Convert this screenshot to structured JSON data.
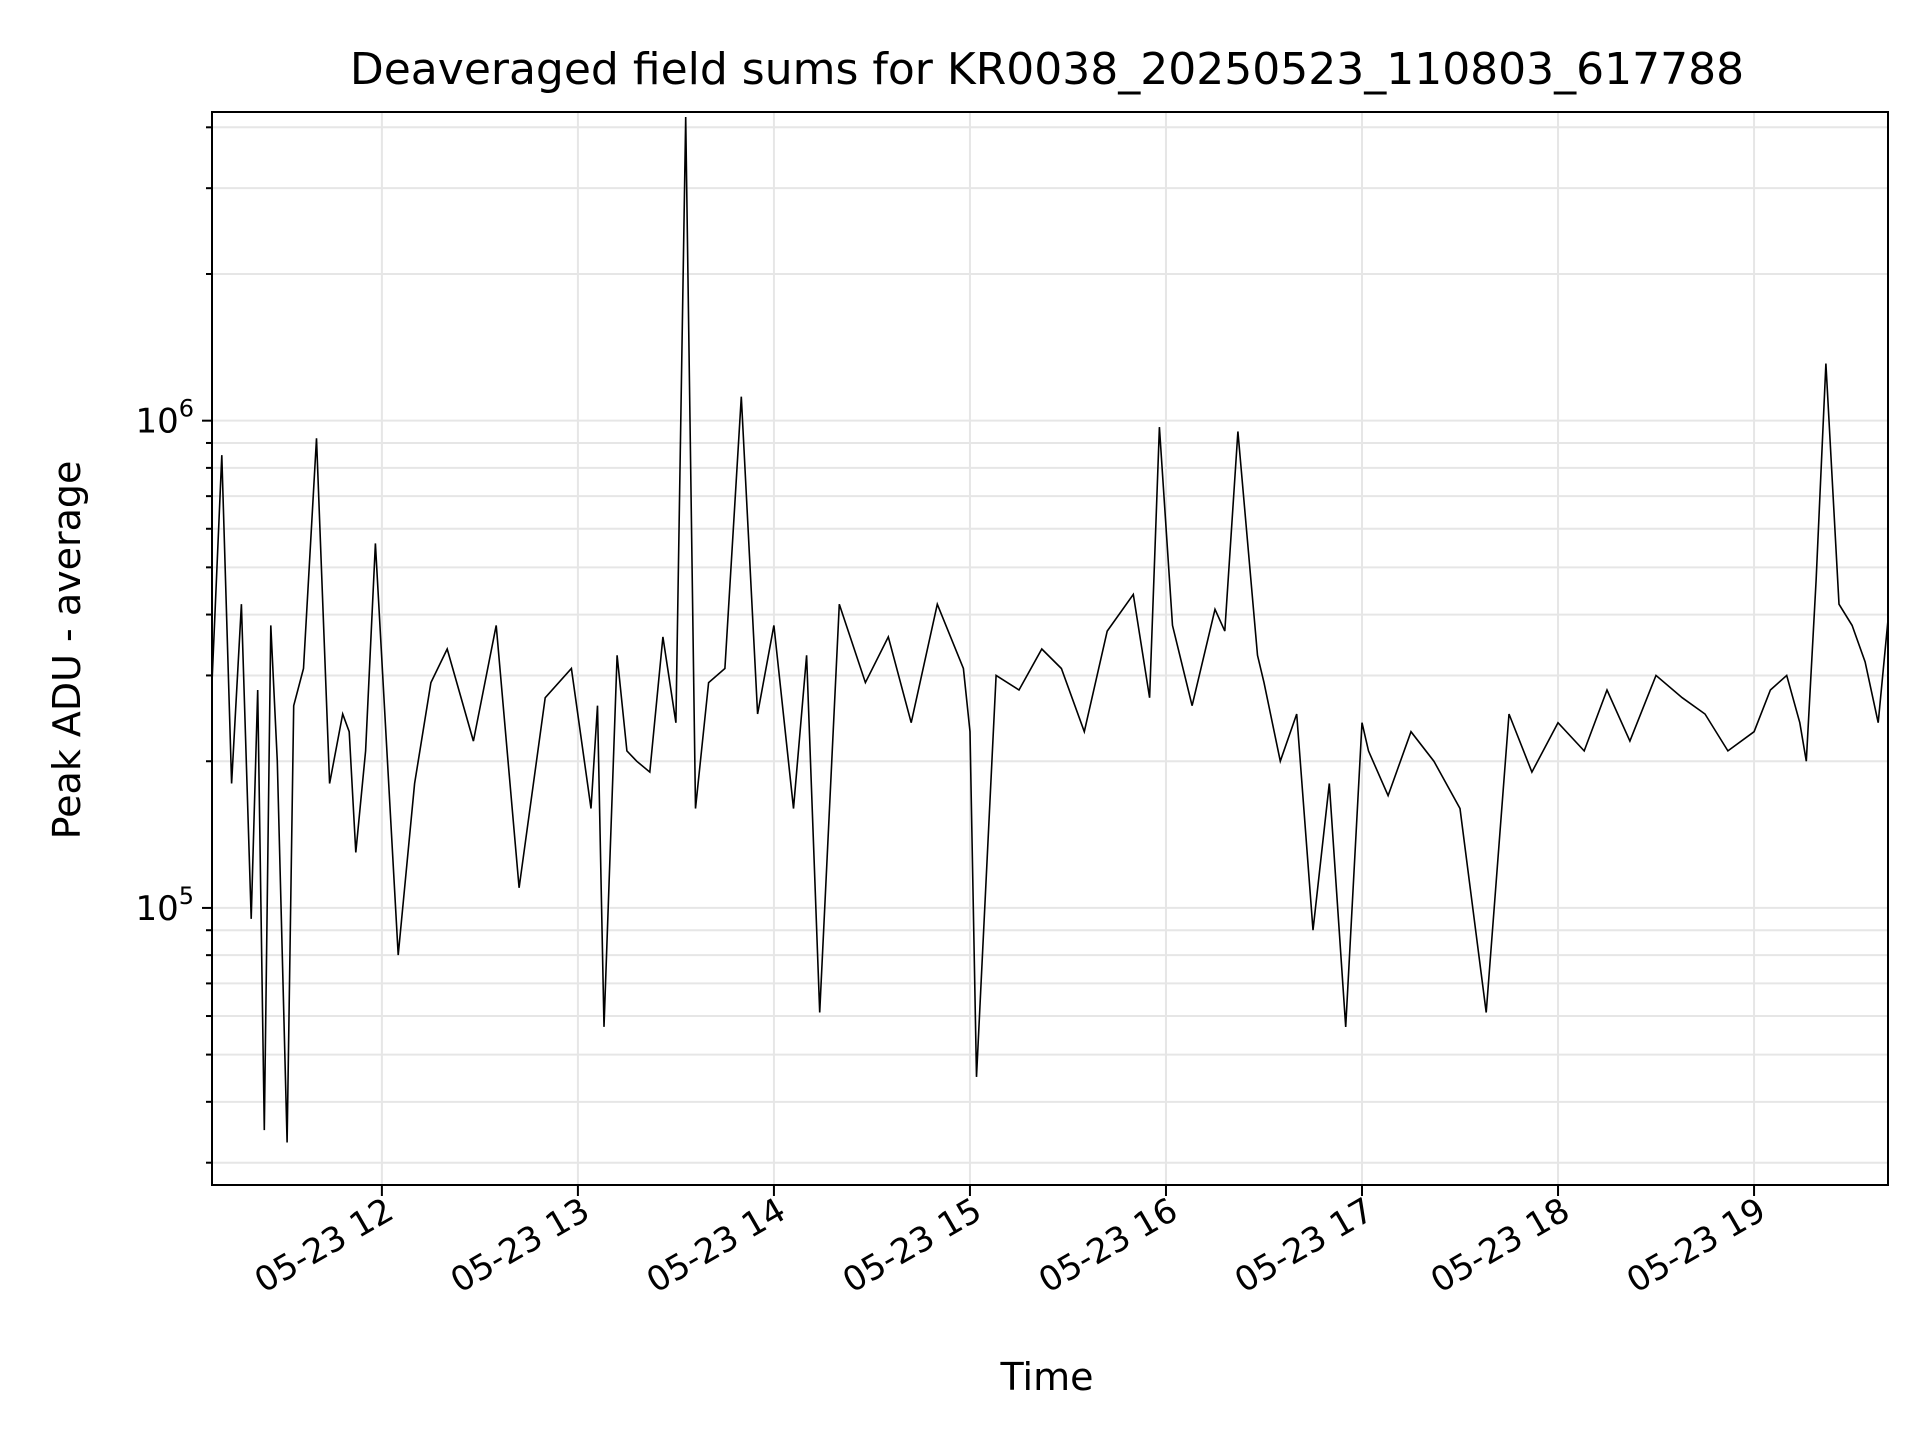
{
  "chart_data": {
    "type": "line",
    "title": "Deaveraged field sums for KR0038_20250523_110803_617788",
    "xlabel": "Time",
    "ylabel": "Peak ADU - average",
    "x_scale": "time",
    "y_scale": "log",
    "xlim": [
      "2025-05-23 11:08",
      "2025-05-23 19:41"
    ],
    "ylim": [
      27000,
      4300000
    ],
    "grid": true,
    "line_color": "#000000",
    "grid_color": "#e6e6e6",
    "x_ticks": [
      {
        "value": "2025-05-23 12:00",
        "label": "05-23 12"
      },
      {
        "value": "2025-05-23 13:00",
        "label": "05-23 13"
      },
      {
        "value": "2025-05-23 14:00",
        "label": "05-23 14"
      },
      {
        "value": "2025-05-23 15:00",
        "label": "05-23 15"
      },
      {
        "value": "2025-05-23 16:00",
        "label": "05-23 16"
      },
      {
        "value": "2025-05-23 17:00",
        "label": "05-23 17"
      },
      {
        "value": "2025-05-23 18:00",
        "label": "05-23 18"
      },
      {
        "value": "2025-05-23 19:00",
        "label": "05-23 19"
      }
    ],
    "y_ticks": [
      {
        "value": 100000,
        "base": "10",
        "exp": "5"
      },
      {
        "value": 1000000,
        "base": "10",
        "exp": "6"
      }
    ],
    "series": [
      {
        "x": [
          "2025-05-23 11:08",
          "2025-05-23 11:11",
          "2025-05-23 11:14",
          "2025-05-23 11:17",
          "2025-05-23 11:20",
          "2025-05-23 11:22",
          "2025-05-23 11:24",
          "2025-05-23 11:26",
          "2025-05-23 11:28",
          "2025-05-23 11:31",
          "2025-05-23 11:33",
          "2025-05-23 11:36",
          "2025-05-23 11:40",
          "2025-05-23 11:44",
          "2025-05-23 11:48",
          "2025-05-23 11:50",
          "2025-05-23 11:52",
          "2025-05-23 11:55",
          "2025-05-23 11:58",
          "2025-05-23 12:05",
          "2025-05-23 12:10",
          "2025-05-23 12:15",
          "2025-05-23 12:20",
          "2025-05-23 12:28",
          "2025-05-23 12:35",
          "2025-05-23 12:42",
          "2025-05-23 12:50",
          "2025-05-23 12:58",
          "2025-05-23 13:04",
          "2025-05-23 13:06",
          "2025-05-23 13:08",
          "2025-05-23 13:12",
          "2025-05-23 13:15",
          "2025-05-23 13:18",
          "2025-05-23 13:22",
          "2025-05-23 13:26",
          "2025-05-23 13:30",
          "2025-05-23 13:33",
          "2025-05-23 13:36",
          "2025-05-23 13:40",
          "2025-05-23 13:45",
          "2025-05-23 13:50",
          "2025-05-23 13:55",
          "2025-05-23 14:00",
          "2025-05-23 14:06",
          "2025-05-23 14:10",
          "2025-05-23 14:14",
          "2025-05-23 14:20",
          "2025-05-23 14:28",
          "2025-05-23 14:35",
          "2025-05-23 14:42",
          "2025-05-23 14:50",
          "2025-05-23 14:58",
          "2025-05-23 15:00",
          "2025-05-23 15:02",
          "2025-05-23 15:08",
          "2025-05-23 15:15",
          "2025-05-23 15:22",
          "2025-05-23 15:28",
          "2025-05-23 15:35",
          "2025-05-23 15:42",
          "2025-05-23 15:50",
          "2025-05-23 15:55",
          "2025-05-23 15:58",
          "2025-05-23 16:02",
          "2025-05-23 16:08",
          "2025-05-23 16:15",
          "2025-05-23 16:18",
          "2025-05-23 16:22",
          "2025-05-23 16:28",
          "2025-05-23 16:30",
          "2025-05-23 16:35",
          "2025-05-23 16:40",
          "2025-05-23 16:45",
          "2025-05-23 16:50",
          "2025-05-23 16:55",
          "2025-05-23 17:00",
          "2025-05-23 17:02",
          "2025-05-23 17:08",
          "2025-05-23 17:15",
          "2025-05-23 17:22",
          "2025-05-23 17:30",
          "2025-05-23 17:38",
          "2025-05-23 17:45",
          "2025-05-23 17:52",
          "2025-05-23 18:00",
          "2025-05-23 18:08",
          "2025-05-23 18:15",
          "2025-05-23 18:22",
          "2025-05-23 18:30",
          "2025-05-23 18:38",
          "2025-05-23 18:45",
          "2025-05-23 18:52",
          "2025-05-23 19:00",
          "2025-05-23 19:05",
          "2025-05-23 19:10",
          "2025-05-23 19:14",
          "2025-05-23 19:16",
          "2025-05-23 19:19",
          "2025-05-23 19:22",
          "2025-05-23 19:26",
          "2025-05-23 19:30",
          "2025-05-23 19:34",
          "2025-05-23 19:38",
          "2025-05-23 19:41"
        ],
        "y": [
          290000,
          850000,
          180000,
          420000,
          95000,
          280000,
          35000,
          380000,
          200000,
          33000,
          260000,
          310000,
          920000,
          180000,
          250000,
          230000,
          130000,
          210000,
          560000,
          80000,
          180000,
          290000,
          340000,
          220000,
          380000,
          110000,
          270000,
          310000,
          160000,
          260000,
          57000,
          330000,
          210000,
          200000,
          190000,
          360000,
          240000,
          4200000,
          160000,
          290000,
          310000,
          1120000,
          250000,
          380000,
          160000,
          330000,
          61000,
          420000,
          290000,
          360000,
          240000,
          420000,
          310000,
          230000,
          45000,
          300000,
          280000,
          340000,
          310000,
          230000,
          370000,
          440000,
          270000,
          970000,
          380000,
          260000,
          410000,
          370000,
          950000,
          330000,
          290000,
          200000,
          250000,
          90000,
          180000,
          57000,
          240000,
          210000,
          170000,
          230000,
          200000,
          160000,
          61000,
          250000,
          190000,
          240000,
          210000,
          280000,
          220000,
          300000,
          270000,
          250000,
          210000,
          230000,
          280000,
          300000,
          240000,
          200000,
          470000,
          1310000,
          420000,
          380000,
          320000,
          240000,
          390000
        ]
      }
    ]
  }
}
